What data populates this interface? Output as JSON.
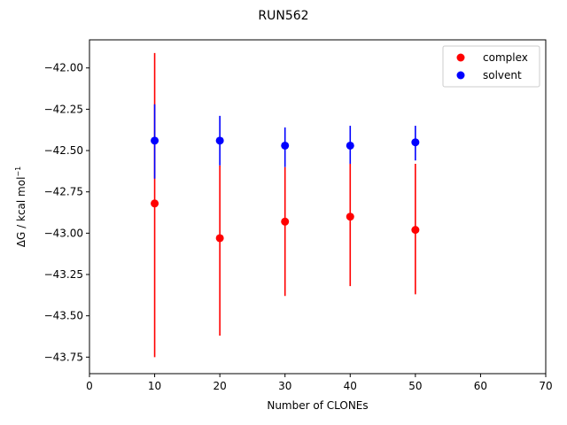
{
  "chart_data": {
    "type": "scatter",
    "title": "RUN562",
    "xlabel": "Number of CLONEs",
    "ylabel_main": "ΔG / kcal mol",
    "ylabel_sup": "−1",
    "xlim": [
      0,
      70
    ],
    "ylim": [
      -43.85,
      -41.83
    ],
    "xticks": [
      0,
      10,
      20,
      30,
      40,
      50,
      60,
      70
    ],
    "xtick_labels": [
      "0",
      "10",
      "20",
      "30",
      "40",
      "50",
      "60",
      "70"
    ],
    "yticks": [
      -42.0,
      -42.25,
      -42.5,
      -42.75,
      -43.0,
      -43.25,
      -43.5,
      -43.75
    ],
    "ytick_labels": [
      "−42.00",
      "−42.25",
      "−42.50",
      "−42.75",
      "−43.00",
      "−43.25",
      "−43.50",
      "−43.75"
    ],
    "grid": false,
    "legend_position": "top-right",
    "series": [
      {
        "name": "complex",
        "color": "#ff0000",
        "x": [
          10,
          20,
          30,
          40,
          50
        ],
        "y": [
          -42.82,
          -43.03,
          -42.93,
          -42.9,
          -42.98
        ],
        "err_low": [
          -43.75,
          -43.62,
          -43.38,
          -43.32,
          -43.37
        ],
        "err_high": [
          -41.91,
          -42.59,
          -42.6,
          -42.58,
          -42.58
        ]
      },
      {
        "name": "solvent",
        "color": "#0000ff",
        "x": [
          10,
          20,
          30,
          40,
          50
        ],
        "y": [
          -42.44,
          -42.44,
          -42.47,
          -42.47,
          -42.45
        ],
        "err_low": [
          -42.67,
          -42.59,
          -42.6,
          -42.58,
          -42.56
        ],
        "err_high": [
          -42.22,
          -42.29,
          -42.36,
          -42.35,
          -42.35
        ]
      }
    ]
  }
}
